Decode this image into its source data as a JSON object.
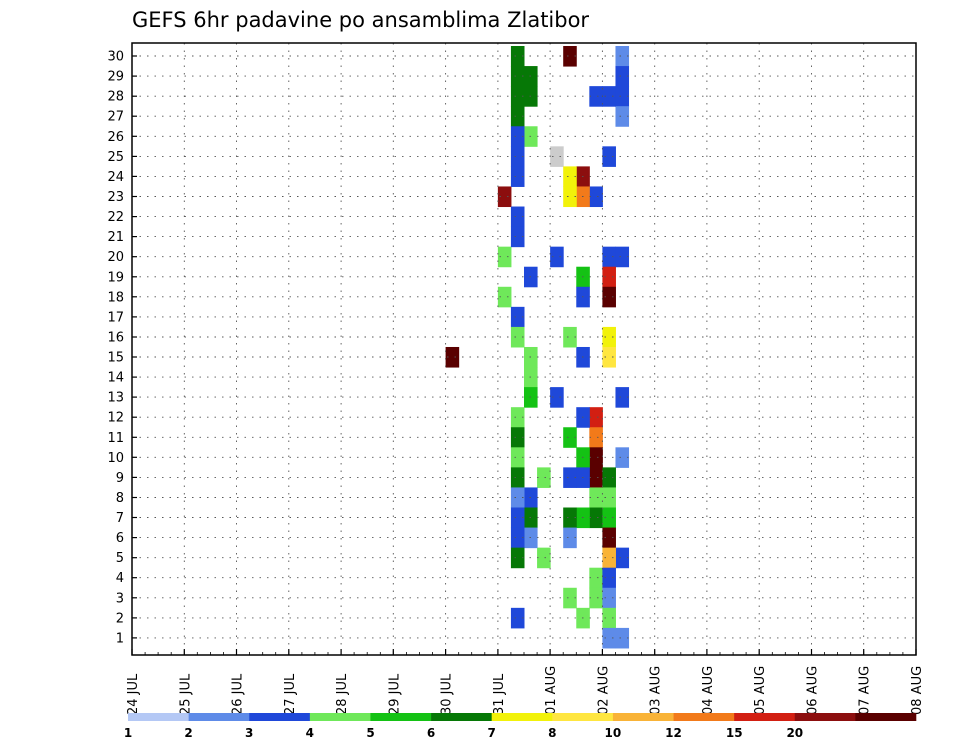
{
  "chart_data": {
    "type": "heatmap",
    "title": "GEFS 6hr padavine po ansamblima Zlatibor",
    "xlabel": "",
    "ylabel": "",
    "x_tick_labels": [
      "24 JUL",
      "25 JUL",
      "26 JUL",
      "27 JUL",
      "28 JUL",
      "29 JUL",
      "30 JUL",
      "31 JUL",
      "01 AUG",
      "02 AUG",
      "03 AUG",
      "04 AUG",
      "05 AUG",
      "06 AUG",
      "07 AUG",
      "08 AUG"
    ],
    "y_tick_labels": [
      "1",
      "2",
      "3",
      "4",
      "5",
      "6",
      "7",
      "8",
      "9",
      "10",
      "11",
      "12",
      "13",
      "14",
      "15",
      "16",
      "17",
      "18",
      "19",
      "20",
      "21",
      "22",
      "23",
      "24",
      "25",
      "26",
      "27",
      "28",
      "29",
      "30"
    ],
    "x_time_steps": 60,
    "ylim": [
      0,
      30
    ],
    "grid": true,
    "colorbar": {
      "labels": [
        "1",
        "2",
        "3",
        "4",
        "5",
        "6",
        "7",
        "8",
        "10",
        "12",
        "15",
        "20"
      ],
      "colors": [
        "#b4c8f5",
        "#5e8be8",
        "#1f48d9",
        "#6fe85a",
        "#14c214",
        "#067806",
        "#f2f20a",
        "#ffe640",
        "#f9b337",
        "#f27a1a",
        "#d21f12",
        "#8c0e0e",
        "#5a0000"
      ]
    },
    "cells": [
      [
        37,
        30,
        1
      ],
      [
        37,
        29,
        2
      ],
      [
        37,
        28,
        2
      ],
      [
        37,
        27,
        1
      ],
      [
        37,
        20,
        2
      ],
      [
        37,
        13,
        2
      ],
      [
        37,
        10,
        1
      ],
      [
        37,
        5,
        2
      ],
      [
        37,
        1,
        1
      ],
      [
        24,
        15,
        12
      ],
      [
        28,
        18,
        3
      ],
      [
        28,
        20,
        3
      ],
      [
        28,
        23,
        11
      ],
      [
        31,
        9,
        3
      ],
      [
        31,
        5,
        3
      ],
      [
        32,
        25,
        13
      ],
      [
        32,
        20,
        2
      ],
      [
        32,
        13,
        2
      ],
      [
        33,
        30,
        12
      ],
      [
        35,
        28,
        2
      ],
      [
        35,
        23,
        2
      ],
      [
        35,
        12,
        10
      ],
      [
        35,
        11,
        9
      ],
      [
        35,
        10,
        12
      ],
      [
        35,
        9,
        12
      ],
      [
        35,
        8,
        3
      ],
      [
        35,
        7,
        5
      ],
      [
        35,
        4,
        3
      ],
      [
        35,
        3,
        3
      ],
      [
        36,
        28,
        2
      ],
      [
        36,
        25,
        2
      ],
      [
        36,
        20,
        2
      ],
      [
        36,
        19,
        10
      ],
      [
        36,
        18,
        12
      ],
      [
        36,
        16,
        6
      ],
      [
        36,
        15,
        7
      ],
      [
        36,
        9,
        5
      ],
      [
        36,
        8,
        3
      ],
      [
        36,
        7,
        4
      ],
      [
        36,
        6,
        12
      ],
      [
        36,
        5,
        8
      ],
      [
        36,
        4,
        2
      ],
      [
        36,
        3,
        1
      ],
      [
        36,
        2,
        3
      ],
      [
        36,
        1,
        1
      ],
      [
        34,
        24,
        11
      ],
      [
        34,
        23,
        9
      ],
      [
        34,
        19,
        4
      ],
      [
        34,
        18,
        2
      ],
      [
        34,
        15,
        2
      ],
      [
        34,
        12,
        2
      ],
      [
        34,
        10,
        4
      ],
      [
        34,
        9,
        2
      ],
      [
        34,
        7,
        4
      ],
      [
        34,
        2,
        3
      ],
      [
        33,
        24,
        6
      ],
      [
        33,
        23,
        6
      ],
      [
        33,
        16,
        3
      ],
      [
        33,
        11,
        4
      ],
      [
        33,
        9,
        2
      ],
      [
        33,
        7,
        5
      ],
      [
        33,
        6,
        1
      ],
      [
        33,
        3,
        3
      ],
      [
        30,
        29,
        5
      ],
      [
        30,
        28,
        5
      ],
      [
        30,
        26,
        3
      ],
      [
        30,
        19,
        2
      ],
      [
        30,
        15,
        3
      ],
      [
        30,
        14,
        3
      ],
      [
        30,
        13,
        4
      ],
      [
        30,
        8,
        2
      ],
      [
        30,
        7,
        5
      ],
      [
        30,
        6,
        1
      ],
      [
        29,
        30,
        5
      ],
      [
        29,
        29,
        5
      ],
      [
        29,
        28,
        5
      ],
      [
        29,
        27,
        5
      ],
      [
        29,
        26,
        2
      ],
      [
        29,
        25,
        2
      ],
      [
        29,
        24,
        2
      ],
      [
        29,
        22,
        2
      ],
      [
        29,
        21,
        2
      ],
      [
        29,
        17,
        2
      ],
      [
        29,
        16,
        3
      ],
      [
        29,
        12,
        3
      ],
      [
        29,
        11,
        5
      ],
      [
        29,
        10,
        3
      ],
      [
        29,
        9,
        5
      ],
      [
        29,
        8,
        1
      ],
      [
        29,
        7,
        2
      ],
      [
        29,
        6,
        2
      ],
      [
        29,
        5,
        5
      ],
      [
        29,
        2,
        2
      ]
    ]
  }
}
